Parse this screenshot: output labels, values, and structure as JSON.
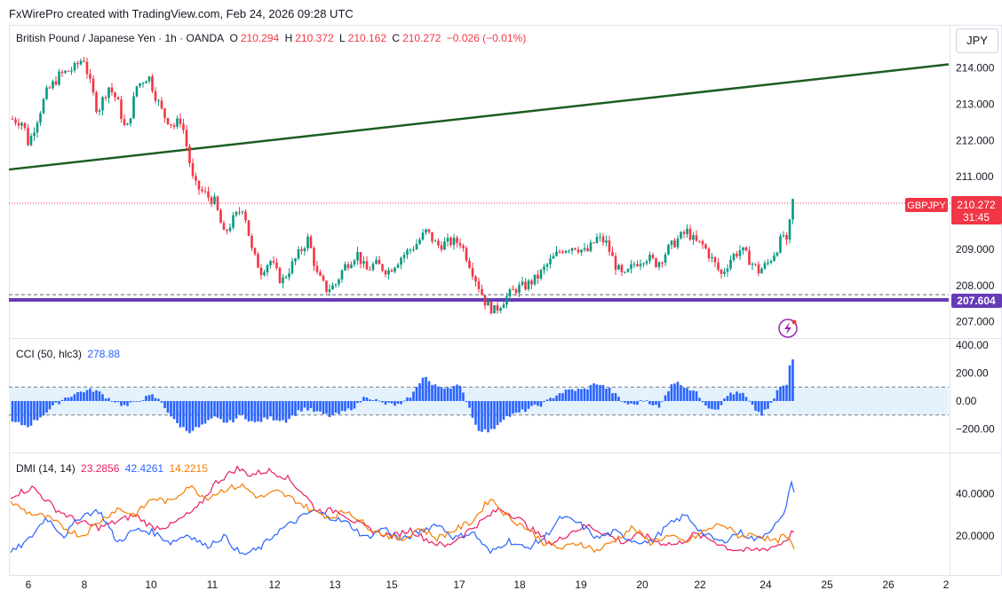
{
  "header": {
    "credit": "FxWirePro created with TradingView.com, Feb 24, 2026 09:28 UTC",
    "instrument": "British Pound / Japanese Yen · 1h · OANDA",
    "o_label": "O",
    "o_value": "210.294",
    "h_label": "H",
    "h_value": "210.372",
    "l_label": "L",
    "l_value": "210.162",
    "c_label": "C",
    "c_value": "210.272",
    "change": "−0.026 (−0.01%)",
    "currency": "JPY"
  },
  "price_tags": {
    "symbol": "GBPJPY",
    "last": "210.272",
    "countdown": "31:45",
    "support": "207.604"
  },
  "colors": {
    "up": "#089981",
    "down": "#f23645",
    "trendline": "#1b5e20",
    "support": "#673ab7",
    "cci": "#2962ff",
    "cci_band": "#e3f2fd",
    "plus_di": "#2962ff",
    "minus_di": "#e91e63",
    "adx": "#f57c00",
    "last_tag": "#f23645"
  },
  "icons": {
    "alert": "lightning-alert-icon"
  },
  "chart_data": [
    {
      "type": "candlestick",
      "title": "British Pound / Japanese Yen · 1h · OANDA",
      "ylim": [
        206.7,
        214.7
      ],
      "y_ticks": [
        "214.000",
        "213.000",
        "212.000",
        "211.000",
        "209.000",
        "208.000",
        "207.000"
      ],
      "y_tick_values": [
        214,
        213,
        212,
        211,
        209,
        208,
        207
      ],
      "x_ticks": [
        "6",
        "8",
        "10",
        "11",
        "12",
        "13",
        "15",
        "17",
        "18",
        "19",
        "20",
        "22",
        "24",
        "25",
        "26",
        "2"
      ],
      "trendline": {
        "start": 211.2,
        "end": 214.1
      },
      "support_level": 207.604,
      "dashed_level": 207.75,
      "last_price": 210.272,
      "path": [
        [
          0,
          212.6
        ],
        [
          14,
          212.5
        ],
        [
          20,
          211.9
        ],
        [
          30,
          212.6
        ],
        [
          40,
          213.3
        ],
        [
          55,
          213.8
        ],
        [
          72,
          214.0
        ],
        [
          82,
          214.3
        ],
        [
          88,
          213.7
        ],
        [
          98,
          212.8
        ],
        [
          110,
          213.5
        ],
        [
          120,
          213.1
        ],
        [
          130,
          212.2
        ],
        [
          142,
          213.5
        ],
        [
          155,
          213.8
        ],
        [
          162,
          213.3
        ],
        [
          172,
          212.7
        ],
        [
          184,
          212.4
        ],
        [
          192,
          212.6
        ],
        [
          200,
          211.6
        ],
        [
          206,
          210.8
        ],
        [
          215,
          210.6
        ],
        [
          230,
          210.3
        ],
        [
          240,
          209.4
        ],
        [
          250,
          209.8
        ],
        [
          262,
          210.2
        ],
        [
          272,
          208.9
        ],
        [
          282,
          208.4
        ],
        [
          292,
          208.7
        ],
        [
          305,
          208.1
        ],
        [
          315,
          208.5
        ],
        [
          325,
          208.9
        ],
        [
          335,
          209.3
        ],
        [
          345,
          208.3
        ],
        [
          355,
          207.9
        ],
        [
          365,
          208.0
        ],
        [
          375,
          208.5
        ],
        [
          390,
          208.9
        ],
        [
          400,
          208.4
        ],
        [
          410,
          208.6
        ],
        [
          425,
          208.4
        ],
        [
          440,
          208.8
        ],
        [
          455,
          209.1
        ],
        [
          468,
          209.5
        ],
        [
          480,
          209.1
        ],
        [
          495,
          209.2
        ],
        [
          506,
          209.2
        ],
        [
          515,
          208.7
        ],
        [
          525,
          208.1
        ],
        [
          535,
          207.5
        ],
        [
          545,
          207.3
        ],
        [
          555,
          207.6
        ],
        [
          568,
          207.9
        ],
        [
          580,
          208.0
        ],
        [
          592,
          208.2
        ],
        [
          605,
          208.6
        ],
        [
          620,
          209.0
        ],
        [
          635,
          209.1
        ],
        [
          648,
          208.9
        ],
        [
          660,
          209.3
        ],
        [
          670,
          209.2
        ],
        [
          680,
          208.6
        ],
        [
          690,
          208.2
        ],
        [
          702,
          208.6
        ],
        [
          715,
          208.8
        ],
        [
          728,
          208.6
        ],
        [
          740,
          209.0
        ],
        [
          752,
          209.3
        ],
        [
          762,
          209.5
        ],
        [
          770,
          209.2
        ],
        [
          780,
          209.1
        ],
        [
          790,
          208.7
        ],
        [
          800,
          208.3
        ],
        [
          812,
          208.8
        ],
        [
          822,
          209.0
        ],
        [
          832,
          208.7
        ],
        [
          842,
          208.4
        ],
        [
          852,
          208.6
        ],
        [
          862,
          209.0
        ],
        [
          870,
          209.4
        ],
        [
          875,
          209.0
        ],
        [
          879,
          210.4
        ],
        [
          882,
          210.27
        ]
      ]
    },
    {
      "type": "bar",
      "title": "CCI (50, hlc3)",
      "value": "278.88",
      "ylim": [
        -280,
        420
      ],
      "y_ticks": [
        "400.00",
        "200.00",
        "0.00",
        "−200.00"
      ],
      "y_tick_values": [
        400,
        200,
        0,
        -200
      ],
      "band": [
        -100,
        100
      ],
      "path": [
        [
          0,
          -150
        ],
        [
          20,
          -180
        ],
        [
          40,
          -80
        ],
        [
          60,
          20
        ],
        [
          80,
          70
        ],
        [
          95,
          80
        ],
        [
          110,
          20
        ],
        [
          130,
          -40
        ],
        [
          145,
          10
        ],
        [
          160,
          40
        ],
        [
          170,
          -10
        ],
        [
          185,
          -150
        ],
        [
          200,
          -220
        ],
        [
          215,
          -180
        ],
        [
          230,
          -120
        ],
        [
          245,
          -160
        ],
        [
          260,
          -100
        ],
        [
          275,
          -160
        ],
        [
          290,
          -120
        ],
        [
          310,
          -140
        ],
        [
          330,
          -50
        ],
        [
          345,
          -80
        ],
        [
          360,
          -110
        ],
        [
          375,
          -80
        ],
        [
          390,
          -30
        ],
        [
          400,
          40
        ],
        [
          420,
          -20
        ],
        [
          440,
          -30
        ],
        [
          455,
          70
        ],
        [
          465,
          190
        ],
        [
          475,
          110
        ],
        [
          490,
          100
        ],
        [
          505,
          110
        ],
        [
          515,
          -20
        ],
        [
          525,
          -200
        ],
        [
          540,
          -220
        ],
        [
          555,
          -120
        ],
        [
          570,
          -90
        ],
        [
          585,
          -50
        ],
        [
          600,
          -20
        ],
        [
          615,
          50
        ],
        [
          630,
          80
        ],
        [
          645,
          80
        ],
        [
          660,
          130
        ],
        [
          675,
          80
        ],
        [
          690,
          -10
        ],
        [
          700,
          -30
        ],
        [
          715,
          10
        ],
        [
          730,
          -50
        ],
        [
          745,
          140
        ],
        [
          755,
          120
        ],
        [
          770,
          70
        ],
        [
          785,
          -40
        ],
        [
          795,
          -60
        ],
        [
          810,
          60
        ],
        [
          825,
          50
        ],
        [
          835,
          -40
        ],
        [
          845,
          -100
        ],
        [
          855,
          -40
        ],
        [
          865,
          100
        ],
        [
          875,
          110
        ],
        [
          878,
          330
        ],
        [
          882,
          279
        ]
      ]
    },
    {
      "type": "line",
      "title": "DMI (14, 14)",
      "ylim": [
        5,
        57
      ],
      "y_ticks": [
        "40.0000",
        "20.0000"
      ],
      "y_tick_values": [
        40,
        20
      ],
      "series": [
        {
          "name": "23.2856",
          "color": "#e91e63",
          "path": [
            [
              0,
              39
            ],
            [
              25,
              43
            ],
            [
              50,
              33
            ],
            [
              75,
              27
            ],
            [
              100,
              24
            ],
            [
              120,
              27
            ],
            [
              140,
              30
            ],
            [
              160,
              24
            ],
            [
              180,
              25
            ],
            [
              210,
              33
            ],
            [
              230,
              45
            ],
            [
              255,
              52
            ],
            [
              270,
              49
            ],
            [
              290,
              51
            ],
            [
              310,
              48
            ],
            [
              330,
              40
            ],
            [
              345,
              32
            ],
            [
              370,
              32
            ],
            [
              390,
              26
            ],
            [
              410,
              22
            ],
            [
              430,
              20
            ],
            [
              450,
              23
            ],
            [
              470,
              18
            ],
            [
              490,
              15
            ],
            [
              510,
              21
            ],
            [
              530,
              27
            ],
            [
              550,
              33
            ],
            [
              570,
              29
            ],
            [
              590,
              22
            ],
            [
              610,
              16
            ],
            [
              630,
              22
            ],
            [
              650,
              25
            ],
            [
              670,
              21
            ],
            [
              690,
              17
            ],
            [
              710,
              21
            ],
            [
              730,
              17
            ],
            [
              750,
              16
            ],
            [
              770,
              21
            ],
            [
              790,
              18
            ],
            [
              810,
              14
            ],
            [
              830,
              13
            ],
            [
              850,
              14
            ],
            [
              865,
              16
            ],
            [
              875,
              19
            ],
            [
              882,
              23
            ]
          ]
        },
        {
          "name": "42.4261",
          "color": "#2962ff",
          "path": [
            [
              0,
              12
            ],
            [
              20,
              18
            ],
            [
              40,
              29
            ],
            [
              60,
              20
            ],
            [
              80,
              30
            ],
            [
              100,
              32
            ],
            [
              120,
              17
            ],
            [
              140,
              23
            ],
            [
              160,
              22
            ],
            [
              180,
              17
            ],
            [
              200,
              21
            ],
            [
              220,
              15
            ],
            [
              240,
              20
            ],
            [
              260,
              11
            ],
            [
              280,
              14
            ],
            [
              300,
              22
            ],
            [
              320,
              27
            ],
            [
              340,
              32
            ],
            [
              360,
              29
            ],
            [
              380,
              26
            ],
            [
              400,
              19
            ],
            [
              420,
              24
            ],
            [
              440,
              18
            ],
            [
              460,
              22
            ],
            [
              480,
              26
            ],
            [
              500,
              19
            ],
            [
              520,
              22
            ],
            [
              540,
              12
            ],
            [
              560,
              18
            ],
            [
              580,
              14
            ],
            [
              600,
              19
            ],
            [
              620,
              29
            ],
            [
              640,
              26
            ],
            [
              660,
              19
            ],
            [
              680,
              22
            ],
            [
              700,
              18
            ],
            [
              720,
              17
            ],
            [
              740,
              25
            ],
            [
              760,
              30
            ],
            [
              780,
              21
            ],
            [
              800,
              17
            ],
            [
              820,
              22
            ],
            [
              840,
              18
            ],
            [
              860,
              25
            ],
            [
              870,
              29
            ],
            [
              878,
              45
            ],
            [
              882,
              42
            ]
          ]
        },
        {
          "name": "14.2215",
          "color": "#f57c00",
          "path": [
            [
              0,
              36
            ],
            [
              20,
              31
            ],
            [
              40,
              29
            ],
            [
              60,
              24
            ],
            [
              80,
              20
            ],
            [
              100,
              27
            ],
            [
              120,
              33
            ],
            [
              140,
              30
            ],
            [
              160,
              38
            ],
            [
              180,
              36
            ],
            [
              200,
              44
            ],
            [
              220,
              38
            ],
            [
              240,
              42
            ],
            [
              260,
              44
            ],
            [
              280,
              38
            ],
            [
              300,
              41
            ],
            [
              320,
              37
            ],
            [
              340,
              32
            ],
            [
              360,
              29
            ],
            [
              380,
              32
            ],
            [
              400,
              25
            ],
            [
              420,
              21
            ],
            [
              440,
              18
            ],
            [
              460,
              24
            ],
            [
              480,
              19
            ],
            [
              500,
              23
            ],
            [
              520,
              27
            ],
            [
              540,
              38
            ],
            [
              560,
              29
            ],
            [
              580,
              24
            ],
            [
              600,
              17
            ],
            [
              620,
              14
            ],
            [
              640,
              17
            ],
            [
              660,
              13
            ],
            [
              680,
              18
            ],
            [
              700,
              24
            ],
            [
              720,
              17
            ],
            [
              740,
              20
            ],
            [
              760,
              17
            ],
            [
              780,
              22
            ],
            [
              800,
              26
            ],
            [
              820,
              20
            ],
            [
              840,
              21
            ],
            [
              860,
              17
            ],
            [
              870,
              20
            ],
            [
              876,
              18
            ],
            [
              882,
              14
            ]
          ]
        }
      ]
    }
  ]
}
